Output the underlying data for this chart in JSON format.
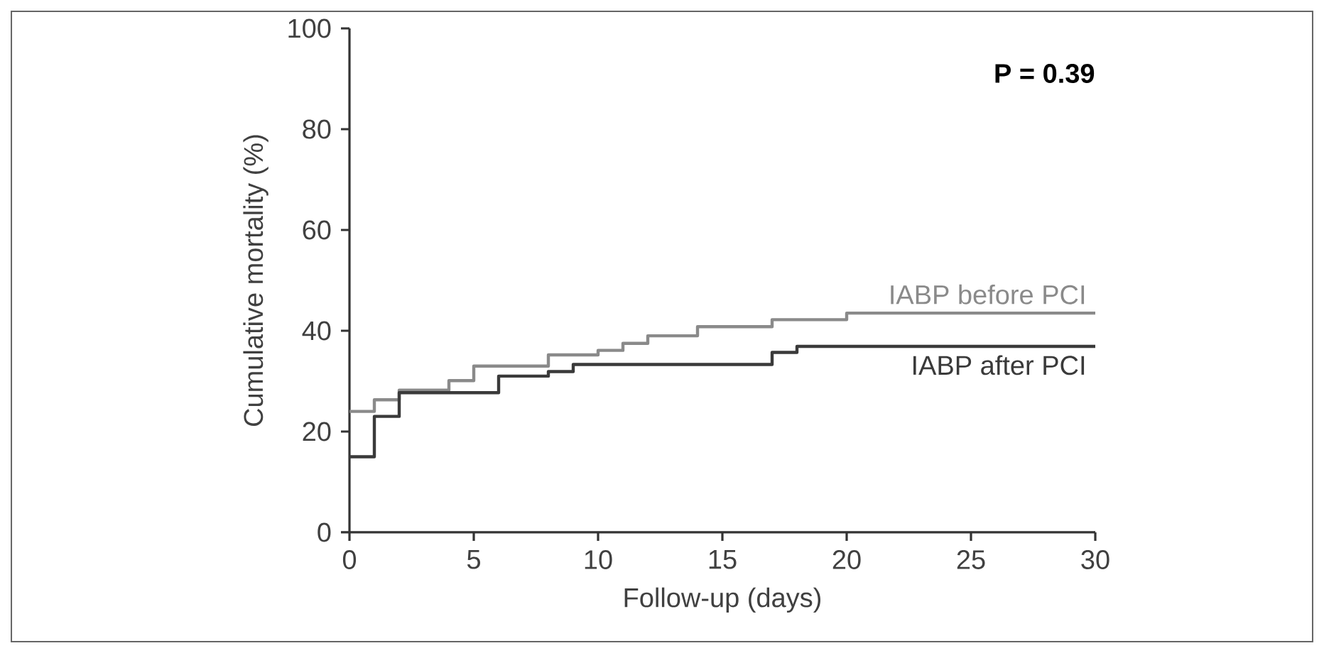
{
  "chart_data": {
    "type": "step",
    "xlabel": "Follow-up (days)",
    "ylabel": "Cumulative mortality (%)",
    "annotations": [
      "P = 0.39"
    ],
    "xlim": [
      0,
      30
    ],
    "ylim": [
      0,
      100
    ],
    "xticks": [
      0,
      5,
      10,
      15,
      20,
      25,
      30
    ],
    "yticks": [
      0,
      20,
      40,
      60,
      80,
      100
    ],
    "grid": false,
    "legend": false,
    "marker": "none",
    "line_style": "solid",
    "series": [
      {
        "name": "IABP before PCI",
        "color": "#8a8a8a",
        "x": [
          0,
          1,
          2,
          4,
          5,
          8,
          10,
          11,
          12,
          14,
          17,
          20,
          30
        ],
        "values": [
          24,
          26.3,
          28.2,
          30.1,
          33,
          35.2,
          36.1,
          37.5,
          39,
          40.8,
          42.2,
          43.5,
          43.5
        ]
      },
      {
        "name": "IABP after PCI",
        "color": "#3a3a3a",
        "x": [
          0,
          1,
          2,
          6,
          8,
          9,
          17,
          18,
          30
        ],
        "values": [
          15,
          23,
          27.7,
          31,
          31.9,
          33.3,
          35.7,
          36.9,
          36.9
        ]
      }
    ]
  }
}
